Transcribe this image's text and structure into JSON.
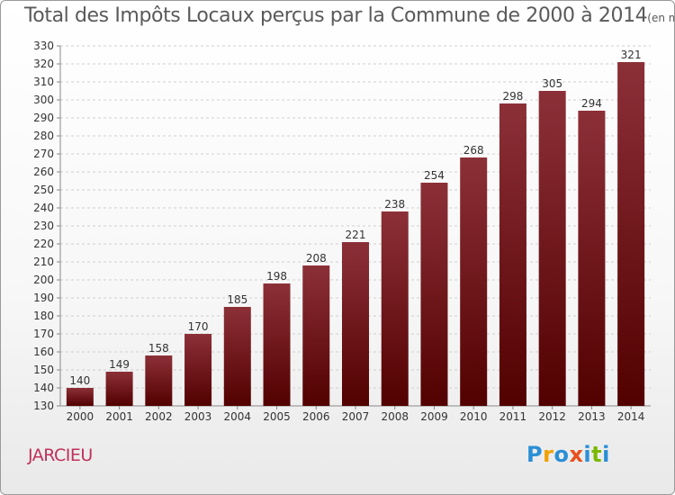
{
  "page": {
    "title": "Total des Impôts Locaux perçus par la Commune de 2000 à 2014",
    "unit_note": "(en milliers d'€)",
    "commune": "JARCIEU",
    "logo_text": "Proxiti"
  },
  "colors": {
    "bar_top": "#8c3038",
    "bar_bottom": "#520000",
    "commune_label": "#c0305a",
    "logo_letters": [
      "#2a8fd6",
      "#f0a100",
      "#2a8fd6",
      "#e8501a",
      "#2a8fd6",
      "#7ab800",
      "#2a8fd6"
    ]
  },
  "chart_data": {
    "type": "bar",
    "title": "Total des Impôts Locaux perçus par la Commune de 2000 à 2014",
    "xlabel": "",
    "ylabel": "",
    "categories": [
      "2000",
      "2001",
      "2002",
      "2003",
      "2004",
      "2005",
      "2006",
      "2007",
      "2008",
      "2009",
      "2010",
      "2011",
      "2012",
      "2013",
      "2014"
    ],
    "values": [
      140,
      149,
      158,
      170,
      185,
      198,
      208,
      221,
      238,
      254,
      268,
      298,
      305,
      294,
      321
    ],
    "ylim": [
      130,
      330
    ],
    "yticks": [
      130,
      140,
      150,
      160,
      170,
      180,
      190,
      200,
      210,
      220,
      230,
      240,
      250,
      260,
      270,
      280,
      290,
      300,
      310,
      320,
      330
    ],
    "grid": "horizontal dashed",
    "legend": "none"
  }
}
